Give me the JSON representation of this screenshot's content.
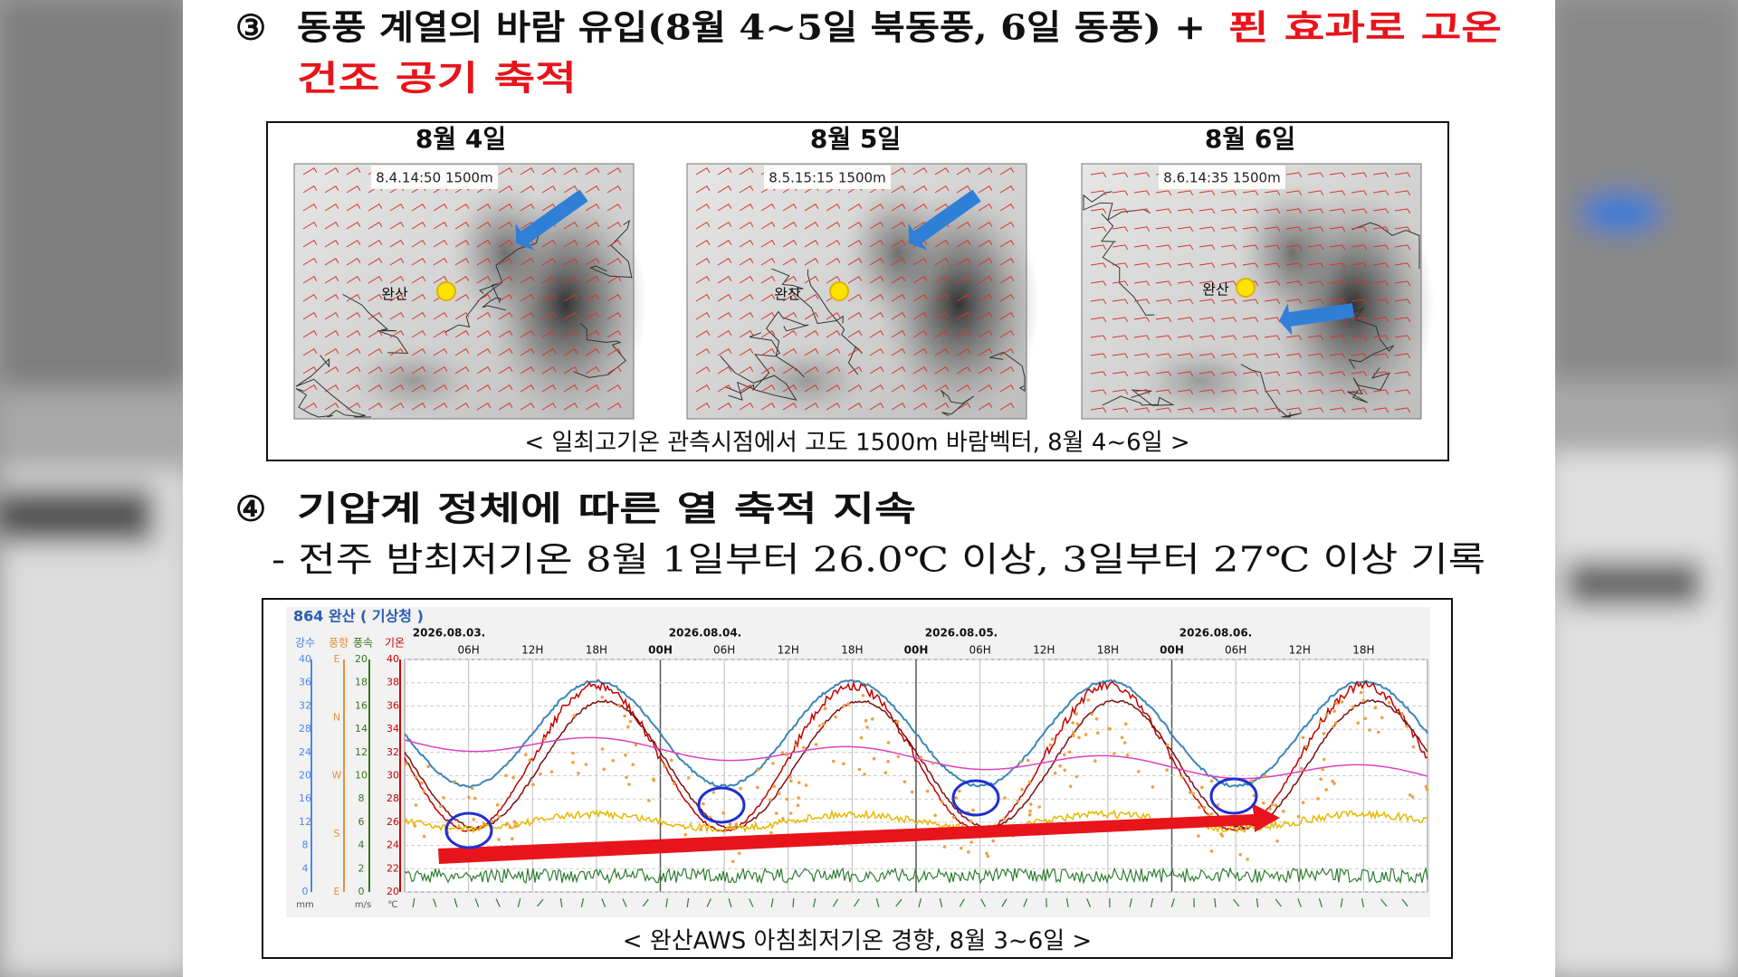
{
  "section3": {
    "marker": "③",
    "title": "동풍 계열의 바람 유입(8월 4~5일 북동풍, 6일 동풍) +",
    "highlight": [
      "푄 효과로 고온",
      "건조 공기 축적"
    ]
  },
  "maps": {
    "panels": [
      {
        "date": "8월 4일",
        "stamp": "8.4.14:50 1500m",
        "place": "완산"
      },
      {
        "date": "8월 5일",
        "stamp": "8.5.15:15 1500m",
        "place": "완산"
      },
      {
        "date": "8월 6일",
        "stamp": "8.6.14:35 1500m",
        "place": "완산"
      }
    ],
    "caption": "< 일최고기온 관측시점에서 고도 1500m 바람벡터, 8월 4~6일 >"
  },
  "section4": {
    "marker": "④",
    "title": "기압계 정체에 따른 열 축적 지속",
    "bullet": "- 전주 밤최저기온 8월 1일부터 26.0℃ 이상, 3일부터 27℃ 이상 기록"
  },
  "chart": {
    "station": "864 완산 ( 기상청 )",
    "dates": [
      "2026.08.03.",
      "2026.08.04.",
      "2026.08.05.",
      "2026.08.06."
    ],
    "hours": [
      "06H",
      "12H",
      "18H",
      "00H",
      "06H",
      "12H",
      "18H",
      "00H",
      "06H",
      "12H",
      "18H",
      "00H",
      "06H",
      "12H",
      "18H"
    ],
    "axis_headers": [
      "강수",
      "풍향",
      "풍속",
      "기온"
    ],
    "precip_ticks": [
      40,
      36,
      32,
      28,
      24,
      20,
      16,
      12,
      8,
      4,
      0
    ],
    "wind_dir_ticks": [
      "E",
      "N",
      "W",
      "S",
      "E"
    ],
    "wind_speed_ticks": [
      20,
      18,
      16,
      14,
      12,
      10,
      8,
      6,
      4,
      2,
      0
    ],
    "temp_ticks": [
      40,
      38,
      36,
      34,
      32,
      30,
      28,
      26,
      24,
      22,
      20
    ],
    "units": [
      "mm",
      "m/s",
      "℃"
    ],
    "caption": "< 완산AWS 아침최저기온 경향, 8월 3~6일 >"
  }
}
